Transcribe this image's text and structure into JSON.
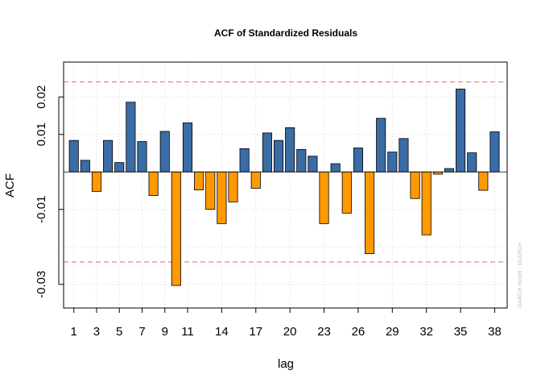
{
  "chart_data": {
    "type": "bar",
    "title": "ACF of Standardized Residuals",
    "xlabel": "lag",
    "ylabel": "ACF",
    "watermark": "GARCH model : sGARCH",
    "x": [
      1,
      2,
      3,
      4,
      5,
      6,
      7,
      8,
      9,
      10,
      11,
      12,
      13,
      14,
      15,
      16,
      17,
      18,
      19,
      20,
      21,
      22,
      23,
      24,
      25,
      26,
      27,
      28,
      29,
      30,
      31,
      32,
      33,
      34,
      35,
      36,
      37,
      38
    ],
    "values": [
      0.0084,
      0.0031,
      -0.0052,
      0.0084,
      0.0025,
      0.0186,
      0.0081,
      -0.0063,
      0.0108,
      -0.0303,
      0.0131,
      -0.0048,
      -0.01,
      -0.0138,
      -0.008,
      0.0062,
      -0.0044,
      0.0104,
      0.0084,
      0.0118,
      0.006,
      0.0042,
      -0.0138,
      0.0022,
      -0.011,
      0.0064,
      -0.0218,
      0.0143,
      0.0053,
      0.0089,
      -0.0071,
      -0.0168,
      -0.0006,
      0.0009,
      0.0221,
      0.0051,
      -0.0049,
      0.0107
    ],
    "conf_bound": 0.024,
    "xticks": [
      1,
      3,
      5,
      7,
      9,
      11,
      14,
      17,
      20,
      23,
      26,
      29,
      32,
      35,
      38
    ],
    "xtick_labels": [
      "1",
      "3",
      "5",
      "7",
      "9",
      "11",
      "14",
      "17",
      "20",
      "23",
      "26",
      "29",
      "32",
      "35",
      "38"
    ],
    "yticks": [
      -0.03,
      -0.01,
      0.01,
      0.02
    ],
    "ytick_labels": [
      "-0.03",
      "-0.01",
      "0.01",
      "0.02"
    ],
    "xlim": [
      0.1,
      39.1
    ],
    "ylim": [
      -0.0363,
      0.0293
    ],
    "grid": true,
    "colors": {
      "positive": "#3a6ca5",
      "negative": "#ff9900",
      "bound_line": "#ee6363",
      "grid": "#d3d3d3",
      "zero_line": "#000000"
    }
  }
}
